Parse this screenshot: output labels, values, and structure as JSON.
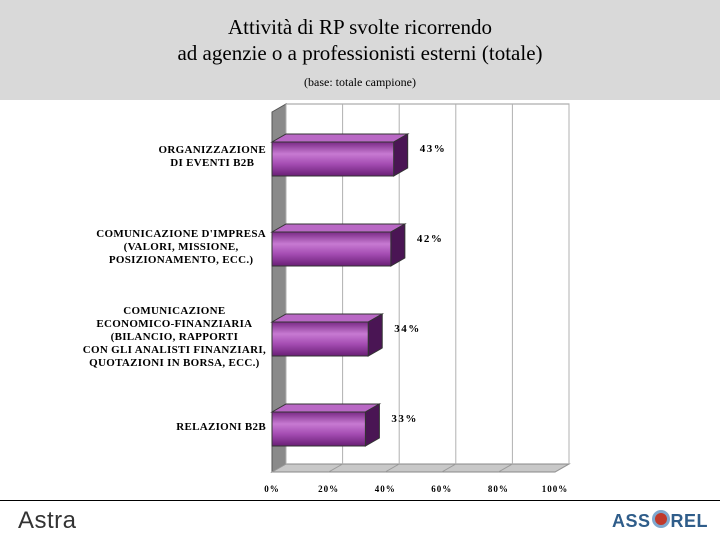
{
  "header": {
    "title_line1": "Attività di RP svolte ricorrendo",
    "title_line2": "ad agenzie o a professionisti esterni (totale)",
    "subtitle": "(base: totale campione)"
  },
  "chart_data": {
    "type": "bar",
    "orientation": "horizontal",
    "title": "Attività di RP svolte ricorrendo ad agenzie o a professionisti esterni (totale)",
    "subtitle": "(base: totale campione)",
    "categories": [
      [
        "ORGANIZZAZIONE",
        "DI EVENTI B2B"
      ],
      [
        "COMUNICAZIONE D'IMPRESA",
        "(VALORI, MISSIONE,",
        "POSIZIONAMENTO, ECC.)"
      ],
      [
        "COMUNICAZIONE",
        "ECONOMICO-FINANZIARIA",
        "(BILANCIO, RAPPORTI",
        "CON GLI ANALISTI FINANZIARI,",
        "QUOTAZIONI IN BORSA, ECC.)"
      ],
      [
        "RELAZIONI B2B"
      ]
    ],
    "values": [
      43,
      42,
      34,
      33
    ],
    "value_labels": [
      "43%",
      "42%",
      "34%",
      "33%"
    ],
    "xlim": [
      0,
      100
    ],
    "xticks": [
      0,
      20,
      40,
      60,
      80,
      100
    ],
    "xtick_labels": [
      "0%",
      "20%",
      "40%",
      "60%",
      "80%",
      "100%"
    ],
    "grid": true,
    "bar_color": "#9b3fa8"
  },
  "footer": {
    "left_logo": "Astra",
    "right_logo_a": "ASS",
    "right_logo_b": "REL"
  }
}
